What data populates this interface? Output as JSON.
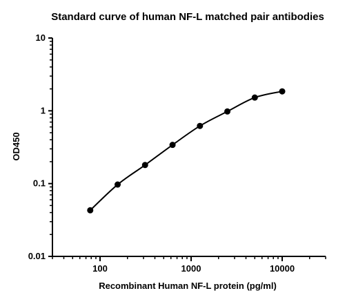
{
  "chart_data": {
    "type": "scatter",
    "title": "Standard curve of human NF-L matched pair antibodies",
    "xlabel": "Recombinant Human NF-L protein (pg/ml)",
    "ylabel": "OD450",
    "x_scale": "log",
    "y_scale": "log",
    "xlim": [
      30,
      30000
    ],
    "ylim": [
      0.01,
      10
    ],
    "x_ticks": [
      100,
      1000,
      10000
    ],
    "x_tick_labels": [
      "100",
      "1000",
      "10000"
    ],
    "y_ticks": [
      0.01,
      0.1,
      1,
      10
    ],
    "y_tick_labels": [
      "0.01",
      "0.1",
      "1",
      "10"
    ],
    "grid": false,
    "legend": "none",
    "fit_curve": true,
    "series": [
      {
        "x": [
          78,
          156,
          312,
          625,
          1250,
          2500,
          5000,
          10000
        ],
        "y": [
          0.043,
          0.097,
          0.18,
          0.34,
          0.62,
          0.98,
          1.52,
          1.85
        ]
      }
    ],
    "colors": {
      "points": "#000000",
      "curve": "#000000"
    }
  }
}
